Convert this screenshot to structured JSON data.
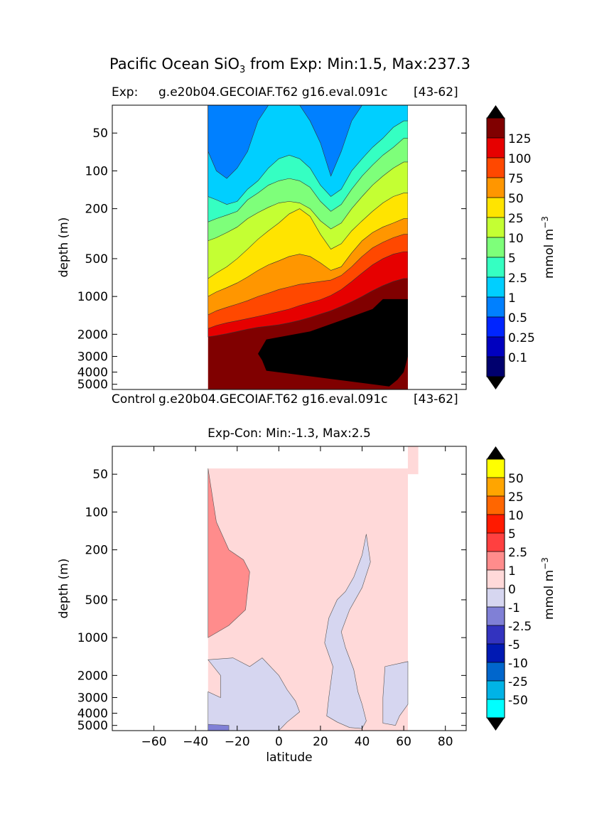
{
  "figure_title_main": "Pacific Ocean SiO",
  "figure_title_sub": "3",
  "figure_title_rest": " from Exp: Min:1.5, Max:237.3",
  "exp_label": "Exp:",
  "exp_run": "g.e20b04.GECOIAF.T62 g16.eval.091c",
  "exp_range": "[43-62]",
  "control_label": "Control",
  "control_run": "g.e20b04.GECOIAF.T62 g16.eval.091c",
  "control_range": "[43-62]",
  "diff_title": "Exp-Con: Min:-1.3, Max:2.5",
  "colorbar_units": "mmol m",
  "colorbar_units_exp": "−3",
  "colors": {
    "black": "#000000",
    "white": "#ffffff",
    "land_fill": "#ffffff",
    "deep_black": "#000000"
  },
  "chart_data": [
    {
      "type": "contourf",
      "title": "Exp:    g.e20b04.GECOIAF.T62 g16.eval.091c [43-62]",
      "xlabel": "",
      "ylabel": "depth (m)",
      "xlim": [
        -80,
        90
      ],
      "y_scale": "log",
      "ylim": [
        5500,
        30
      ],
      "y_ticks": [
        50,
        100,
        200,
        500,
        1000,
        2000,
        3000,
        4000,
        5000
      ],
      "y_tick_labels": [
        "50",
        "100",
        "200",
        "500",
        "1000",
        "2000",
        "3000",
        "4000",
        "5000"
      ],
      "x_ticks": [],
      "data_lat_range": [
        -34,
        62
      ],
      "levels": [
        0.1,
        0.25,
        0.5,
        1,
        2.5,
        5,
        10,
        25,
        50,
        75,
        100,
        125
      ],
      "level_labels": [
        "0.1",
        "0.25",
        "0.5",
        "1",
        "2.5",
        "5",
        "10",
        "25",
        "50",
        "75",
        "100",
        "125"
      ],
      "colors": [
        "#00006e",
        "#0000bf",
        "#0025ff",
        "#0080ff",
        "#00cfff",
        "#35ffc2",
        "#7eff7a",
        "#c4ff33",
        "#ffe400",
        "#ff9600",
        "#ff4800",
        "#e60000",
        "#800000"
      ],
      "colorbar_units": "mmol m^-3",
      "approx_boundaries": {
        "lat": [
          -34,
          -30,
          -25,
          -20,
          -15,
          -10,
          -5,
          0,
          5,
          10,
          15,
          20,
          25,
          30,
          35,
          40,
          45,
          50,
          55,
          60
        ],
        "1": [
          70,
          100,
          115,
          95,
          70,
          40,
          30,
          30,
          30,
          30,
          40,
          60,
          110,
          70,
          40,
          30,
          30,
          30,
          30,
          30
        ],
        "2.5": [
          160,
          170,
          185,
          175,
          140,
          120,
          95,
          80,
          75,
          80,
          95,
          130,
          160,
          140,
          100,
          80,
          65,
          55,
          45,
          40
        ],
        "5": [
          255,
          240,
          225,
          210,
          170,
          150,
          130,
          120,
          115,
          120,
          135,
          175,
          210,
          185,
          140,
          110,
          90,
          75,
          65,
          55
        ],
        "10": [
          360,
          340,
          310,
          280,
          240,
          215,
          195,
          180,
          175,
          180,
          200,
          250,
          290,
          260,
          200,
          160,
          130,
          110,
          95,
          85
        ],
        "25": [
          720,
          650,
          580,
          500,
          420,
          350,
          300,
          260,
          220,
          200,
          230,
          320,
          420,
          380,
          300,
          250,
          210,
          180,
          160,
          150
        ],
        "50": [
          1000,
          920,
          850,
          780,
          700,
          620,
          560,
          520,
          480,
          460,
          480,
          540,
          620,
          580,
          450,
          360,
          310,
          280,
          260,
          240
        ],
        "75": [
          1400,
          1300,
          1220,
          1150,
          1080,
          1000,
          940,
          880,
          840,
          800,
          780,
          760,
          740,
          680,
          580,
          480,
          410,
          370,
          340,
          320
        ],
        "100": [
          1800,
          1700,
          1620,
          1560,
          1500,
          1440,
          1380,
          1320,
          1260,
          1180,
          1120,
          1060,
          980,
          880,
          760,
          650,
          560,
          500,
          460,
          440
        ],
        "125": [
          2100,
          2050,
          1980,
          1900,
          1820,
          1760,
          1720,
          1680,
          1620,
          1550,
          1470,
          1380,
          1300,
          1200,
          1100,
          1000,
          900,
          820,
          760,
          720
        ]
      },
      "black_region_lat": [
        -10,
        62
      ],
      "black_region_depth": [
        1050,
        5200
      ]
    },
    {
      "type": "contourf",
      "title": "Exp-Con: Min:-1.3, Max:2.5",
      "xlabel": "latitude",
      "ylabel": "depth (m)",
      "xlim": [
        -80,
        90
      ],
      "x_ticks": [
        -60,
        -40,
        -20,
        0,
        20,
        40,
        60,
        80
      ],
      "x_tick_labels": [
        "−60",
        "−40",
        "−20",
        "0",
        "20",
        "40",
        "60",
        "80"
      ],
      "y_scale": "log",
      "ylim": [
        5500,
        30
      ],
      "y_ticks": [
        50,
        100,
        200,
        500,
        1000,
        2000,
        3000,
        4000,
        5000
      ],
      "y_tick_labels": [
        "50",
        "100",
        "200",
        "500",
        "1000",
        "2000",
        "3000",
        "4000",
        "5000"
      ],
      "data_lat_range": [
        -34,
        62
      ],
      "levels": [
        -50,
        -25,
        -10,
        -5,
        -2.5,
        -1,
        0,
        1,
        2.5,
        5,
        10,
        25,
        50
      ],
      "level_labels": [
        "-50",
        "-25",
        "-10",
        "-5",
        "-2.5",
        "-1",
        "0",
        "1",
        "2.5",
        "5",
        "10",
        "25",
        "50"
      ],
      "colors": [
        "#00ffff",
        "#00b3e6",
        "#0066cc",
        "#0019b3",
        "#3333bf",
        "#8080d6",
        "#d6d6f0",
        "#ffd9d9",
        "#ff8c8c",
        "#ff4040",
        "#ff1a00",
        "#ff6600",
        "#ffa500",
        "#ffff00"
      ],
      "colorbar_units": "mmol m^-3",
      "regions": [
        {
          "label": "1 to 2.5",
          "lat": [
            -34,
            -14
          ],
          "depth": [
            40,
            1000
          ]
        },
        {
          "label": "-1 to 0",
          "lat": [
            -34,
            10
          ],
          "depth": [
            1500,
            5200
          ]
        },
        {
          "label": "-1 to 0",
          "lat": [
            22,
            42
          ],
          "depth": [
            150,
            5000
          ]
        },
        {
          "label": "-1 to 0",
          "lat": [
            50,
            62
          ],
          "depth": [
            1600,
            4500
          ]
        },
        {
          "label": "-2.5 to -1",
          "lat": [
            -34,
            -24
          ],
          "depth": [
            4900,
            5500
          ]
        }
      ]
    }
  ]
}
